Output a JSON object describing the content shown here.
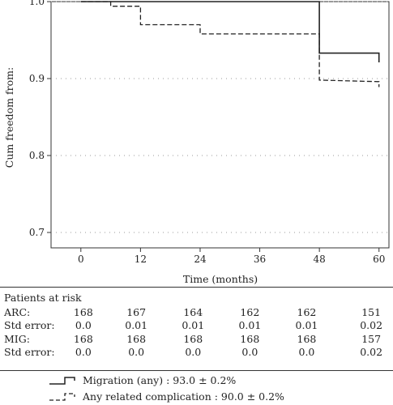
{
  "chart_data": {
    "type": "line",
    "step": true,
    "ylabel": "Cum freedom from:",
    "xlabel": "Time (months)",
    "xlim": [
      -6,
      62
    ],
    "ylim": [
      0.68,
      1.0
    ],
    "x_ticks": [
      0,
      12,
      24,
      36,
      48,
      60
    ],
    "y_ticks": [
      1.0,
      0.9,
      0.8,
      0.7
    ],
    "y_tick_labels": [
      "1.0",
      "0.9",
      "0.8",
      "0.7"
    ],
    "grid": "horizontal dotted",
    "series": [
      {
        "name": "Migration (any) : 93.0 ± 0.2%",
        "style": "solid",
        "x": [
          0,
          48,
          48,
          60,
          60
        ],
        "y": [
          1.0,
          1.0,
          0.933,
          0.933,
          0.921
        ]
      },
      {
        "name": "Any related complication : 90.0 ± 0.2%",
        "style": "dashed",
        "x": [
          0,
          6,
          6,
          12,
          12,
          24,
          24,
          48,
          48,
          60,
          60
        ],
        "y": [
          1.0,
          1.0,
          0.994,
          0.994,
          0.97,
          0.97,
          0.958,
          0.958,
          0.898,
          0.896,
          0.889
        ]
      }
    ]
  },
  "risk_table": {
    "title": "Patients at risk",
    "rows": [
      {
        "label": "ARC:",
        "values": [
          "168",
          "167",
          "164",
          "162",
          "162",
          "151"
        ]
      },
      {
        "label": "Std error:",
        "values": [
          "0.0",
          "0.01",
          "0.01",
          "0.01",
          "0.01",
          "0.02"
        ]
      },
      {
        "label": "MIG:",
        "values": [
          "168",
          "168",
          "168",
          "168",
          "168",
          "157"
        ]
      },
      {
        "label": "Std error:",
        "values": [
          "0.0",
          "0.0",
          "0.0",
          "0.0",
          "0.0",
          "0.02"
        ]
      }
    ]
  },
  "legend": [
    {
      "label": "Migration (any) : 93.0 ± 0.2%",
      "style": "solid"
    },
    {
      "label": "Any related complication : 90.0 ± 0.2%",
      "style": "dashed"
    }
  ]
}
